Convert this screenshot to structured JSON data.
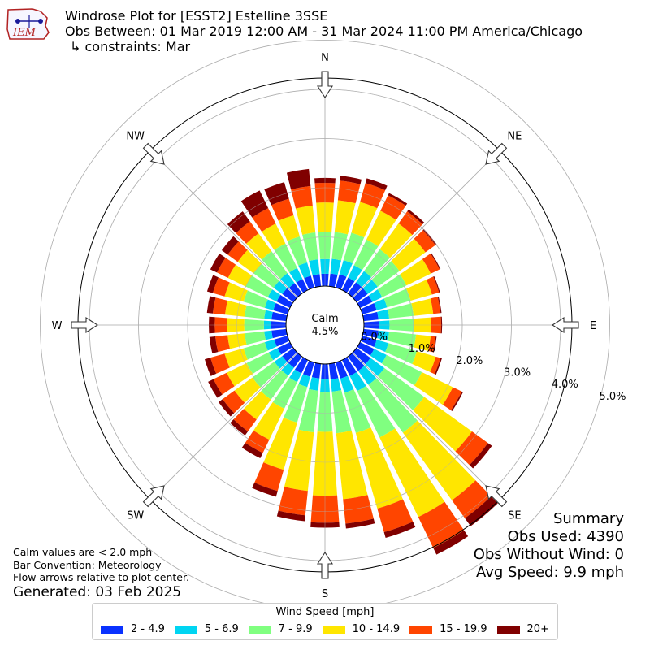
{
  "header": {
    "title": "Windrose Plot for [ESST2] Estelline 3SSE",
    "subtitle": "Obs Between: 01 Mar 2019 12:00 AM - 31 Mar 2024 11:00 PM America/Chicago",
    "constraints": "↳ constraints: Mar",
    "logo_text": "IEM"
  },
  "notes": {
    "calm_note": "Calm values are < 2.0 mph",
    "bar_convention": "Bar Convention: Meteorology",
    "flow_arrows": "Flow arrows relative to plot center.",
    "generated": "Generated: 03 Feb 2025"
  },
  "summary": {
    "heading": "Summary",
    "obs_used": "Obs Used: 4390",
    "obs_without_wind": "Obs Without Wind: 0",
    "avg_speed": "Avg Speed: 9.9 mph"
  },
  "center": {
    "label": "Calm",
    "value": "4.5%"
  },
  "legend": {
    "title": "Wind Speed [mph]",
    "items": [
      {
        "label": "2 - 4.9",
        "color": "#0a32ff"
      },
      {
        "label": "5 - 6.9",
        "color": "#00d5f2"
      },
      {
        "label": "7 - 9.9",
        "color": "#80ff80"
      },
      {
        "label": "10 - 14.9",
        "color": "#ffe600"
      },
      {
        "label": "15 - 19.9",
        "color": "#ff4500"
      },
      {
        "label": "20+",
        "color": "#800000"
      }
    ]
  },
  "chart_data": {
    "type": "windrose",
    "calm_percent": 4.5,
    "radial_ticks": [
      "0.0%",
      "1.0%",
      "2.0%",
      "3.0%",
      "4.0%",
      "5.0%"
    ],
    "radial_values": [
      0,
      1,
      2,
      3,
      4,
      5
    ],
    "compass_labels": [
      {
        "label": "N",
        "deg": 0
      },
      {
        "label": "NE",
        "deg": 45
      },
      {
        "label": "E",
        "deg": 90
      },
      {
        "label": "SE",
        "deg": 135
      },
      {
        "label": "S",
        "deg": 180
      },
      {
        "label": "SW",
        "deg": 225
      },
      {
        "label": "W",
        "deg": 270
      },
      {
        "label": "NW",
        "deg": 315
      }
    ],
    "directions_deg": [
      0,
      10,
      20,
      30,
      40,
      50,
      60,
      70,
      80,
      90,
      100,
      110,
      120,
      130,
      140,
      150,
      160,
      170,
      180,
      190,
      200,
      210,
      220,
      230,
      240,
      250,
      260,
      270,
      280,
      290,
      300,
      310,
      320,
      330,
      340,
      350
    ],
    "series": [
      {
        "name": "2 - 4.9",
        "values": [
          0.25,
          0.26,
          0.28,
          0.28,
          0.28,
          0.28,
          0.28,
          0.3,
          0.3,
          0.3,
          0.3,
          0.3,
          0.32,
          0.35,
          0.36,
          0.36,
          0.34,
          0.32,
          0.3,
          0.3,
          0.3,
          0.3,
          0.28,
          0.28,
          0.28,
          0.28,
          0.3,
          0.3,
          0.3,
          0.3,
          0.3,
          0.28,
          0.26,
          0.25,
          0.25,
          0.25
        ]
      },
      {
        "name": "5 - 6.9",
        "values": [
          0.3,
          0.3,
          0.3,
          0.28,
          0.28,
          0.25,
          0.22,
          0.22,
          0.22,
          0.22,
          0.22,
          0.25,
          0.28,
          0.35,
          0.35,
          0.34,
          0.3,
          0.25,
          0.28,
          0.25,
          0.22,
          0.2,
          0.2,
          0.2,
          0.2,
          0.2,
          0.15,
          0.15,
          0.15,
          0.18,
          0.2,
          0.22,
          0.25,
          0.25,
          0.28,
          0.3
        ]
      },
      {
        "name": "7 - 9.9",
        "values": [
          0.55,
          0.55,
          0.58,
          0.58,
          0.55,
          0.55,
          0.55,
          0.5,
          0.5,
          0.5,
          0.55,
          0.6,
          0.8,
          1.0,
          1.2,
          1.05,
          0.85,
          0.85,
          0.8,
          0.85,
          0.75,
          0.6,
          0.6,
          0.55,
          0.5,
          0.45,
          0.4,
          0.4,
          0.4,
          0.45,
          0.5,
          0.5,
          0.55,
          0.55,
          0.55,
          0.55
        ]
      },
      {
        "name": "10 - 14.9",
        "values": [
          0.6,
          0.65,
          0.65,
          0.65,
          0.65,
          0.65,
          0.55,
          0.45,
          0.4,
          0.35,
          0.3,
          0.4,
          0.7,
          1.2,
          1.7,
          1.8,
          1.6,
          1.35,
          1.3,
          1.2,
          1.0,
          0.7,
          0.5,
          0.45,
          0.45,
          0.4,
          0.35,
          0.35,
          0.4,
          0.4,
          0.4,
          0.4,
          0.45,
          0.45,
          0.45,
          0.55
        ]
      },
      {
        "name": "15 - 19.9",
        "values": [
          0.4,
          0.4,
          0.4,
          0.35,
          0.3,
          0.25,
          0.2,
          0.15,
          0.15,
          0.2,
          0.1,
          0.1,
          0.2,
          0.4,
          0.45,
          0.7,
          0.5,
          0.5,
          0.55,
          0.5,
          0.45,
          0.3,
          0.3,
          0.3,
          0.3,
          0.3,
          0.25,
          0.25,
          0.25,
          0.25,
          0.25,
          0.25,
          0.3,
          0.35,
          0.35,
          0.4
        ]
      },
      {
        "name": "20+",
        "values": [
          0.1,
          0.1,
          0.1,
          0.05,
          0.05,
          0.03,
          0.02,
          0.02,
          0.02,
          0.02,
          0.02,
          0.03,
          0.03,
          0.1,
          0.2,
          0.15,
          0.12,
          0.1,
          0.1,
          0.12,
          0.12,
          0.12,
          0.1,
          0.1,
          0.12,
          0.12,
          0.12,
          0.12,
          0.12,
          0.12,
          0.15,
          0.15,
          0.25,
          0.4,
          0.35,
          0.35
        ]
      }
    ]
  }
}
